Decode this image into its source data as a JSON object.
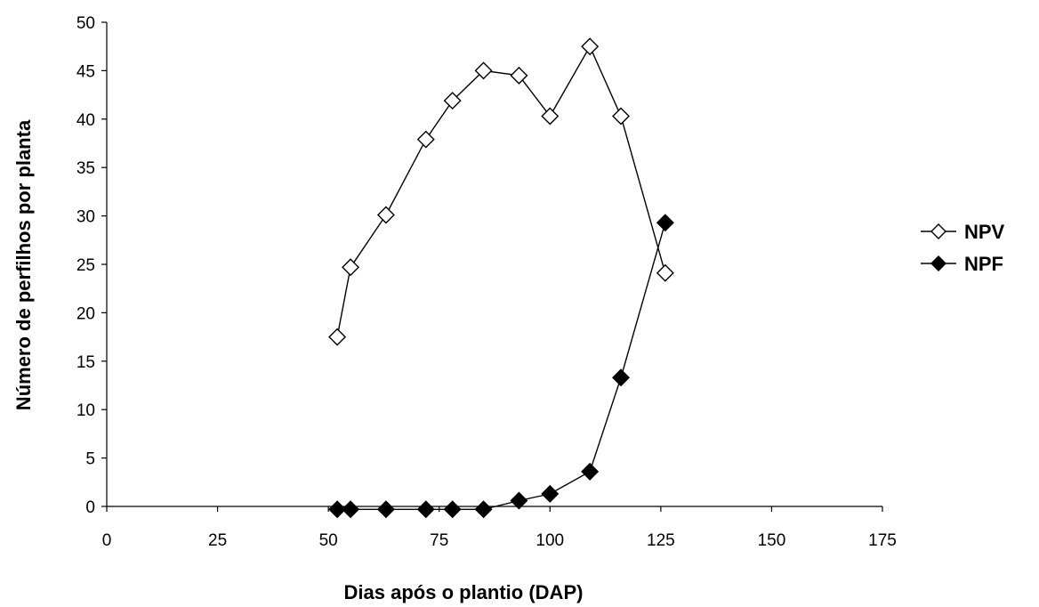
{
  "chart_data": {
    "type": "line",
    "xlabel": "Dias após o plantio (DAP)",
    "ylabel": "Número de perfilhos por planta",
    "xlim": [
      0,
      175
    ],
    "ylim": [
      0,
      50
    ],
    "xticks": [
      0,
      25,
      50,
      75,
      100,
      125,
      150,
      175
    ],
    "yticks": [
      0,
      5,
      10,
      15,
      20,
      25,
      30,
      35,
      40,
      45,
      50
    ],
    "grid": false,
    "legend_position": "right",
    "series": [
      {
        "name": "NPV",
        "marker": "open-diamond",
        "color": "#000000",
        "x": [
          52,
          55,
          63,
          72,
          78,
          85,
          93,
          100,
          109,
          116,
          126
        ],
        "y": [
          17.5,
          24.7,
          30.1,
          37.9,
          41.9,
          45.0,
          44.5,
          40.3,
          47.5,
          40.3,
          24.1
        ]
      },
      {
        "name": "NPF",
        "marker": "filled-diamond",
        "color": "#000000",
        "x": [
          52,
          55,
          63,
          72,
          78,
          85,
          93,
          100,
          109,
          116,
          126
        ],
        "y": [
          -0.3,
          -0.3,
          -0.3,
          -0.3,
          -0.3,
          -0.3,
          0.6,
          1.3,
          3.6,
          13.3,
          29.3
        ]
      }
    ]
  }
}
